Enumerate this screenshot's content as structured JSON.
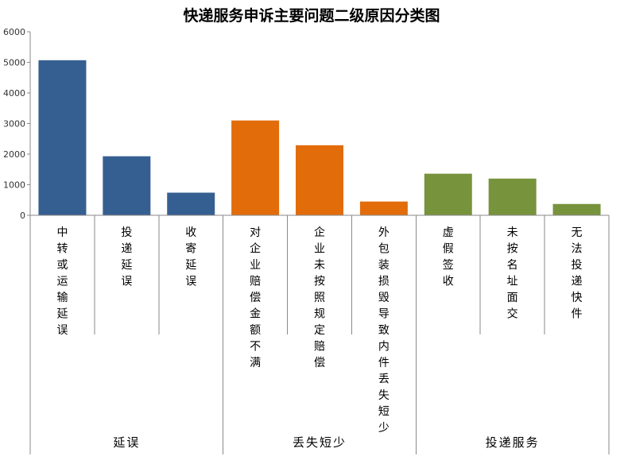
{
  "chart_data": {
    "type": "bar",
    "title": "快递服务申诉主要问题二级原因分类图",
    "xlabel": "",
    "ylabel": "",
    "ylim": [
      0,
      6000
    ],
    "yticks": [
      0,
      1000,
      2000,
      3000,
      4000,
      5000,
      6000
    ],
    "grid": false,
    "categories": [
      "中转或运输延误",
      "投递延误",
      "收寄延误",
      "对企业赔偿金额不满",
      "企业未按照规定赔偿",
      "外包装损毁导致内件丢失短少",
      "虚假签收",
      "未按名址面交",
      "无法投递快件"
    ],
    "values": [
      5070,
      1930,
      740,
      3100,
      2290,
      450,
      1360,
      1200,
      370
    ],
    "groups": [
      {
        "name": "延误",
        "count": 3,
        "color": "#365f91"
      },
      {
        "name": "丢失短少",
        "count": 3,
        "color": "#e36c0a"
      },
      {
        "name": "投递服务",
        "count": 3,
        "color": "#77933c"
      }
    ]
  }
}
